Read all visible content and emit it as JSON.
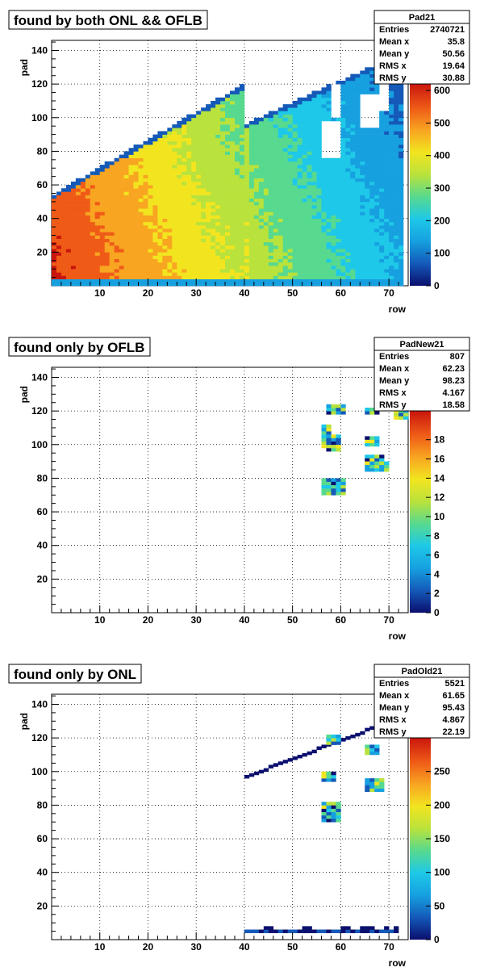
{
  "chart_data": [
    {
      "type": "heatmap",
      "title": "found by both ONL && OFLB",
      "xlabel": "row",
      "ylabel": "pad",
      "xlim": [
        0,
        74
      ],
      "ylim": [
        0,
        146
      ],
      "xticks": [
        "10",
        "20",
        "30",
        "40",
        "50",
        "60",
        "70"
      ],
      "yticks": [
        "20",
        "40",
        "60",
        "80",
        "100",
        "120",
        "140"
      ],
      "zlim": [
        0,
        620
      ],
      "zticks": [
        "0",
        "100",
        "200",
        "300",
        "400",
        "500",
        "600"
      ],
      "grid": true,
      "stats": {
        "name": "Pad21",
        "rows": [
          {
            "label": "Entries",
            "value": "2740721"
          },
          {
            "label": "Mean x",
            "value": "35.8"
          },
          {
            "label": "Mean y",
            "value": "50.56"
          },
          {
            "label": "RMS x",
            "value": "19.64"
          },
          {
            "label": "RMS y",
            "value": "30.88"
          }
        ]
      }
    },
    {
      "type": "heatmap",
      "title": "found only by OFLB",
      "xlabel": "row",
      "ylabel": "pad",
      "xlim": [
        0,
        74
      ],
      "ylim": [
        0,
        146
      ],
      "xticks": [
        "10",
        "20",
        "30",
        "40",
        "50",
        "60",
        "70"
      ],
      "yticks": [
        "20",
        "40",
        "60",
        "80",
        "100",
        "120",
        "140"
      ],
      "zlim": [
        0,
        21
      ],
      "zticks": [
        "0",
        "2",
        "4",
        "6",
        "8",
        "10",
        "12",
        "14",
        "16",
        "18"
      ],
      "grid": true,
      "stats": {
        "name": "PadNew21",
        "rows": [
          {
            "label": "Entries",
            "value": "807"
          },
          {
            "label": "Mean x",
            "value": "62.23"
          },
          {
            "label": "Mean y",
            "value": "98.23"
          },
          {
            "label": "RMS x",
            "value": "4.167"
          },
          {
            "label": "RMS y",
            "value": "18.58"
          }
        ]
      }
    },
    {
      "type": "heatmap",
      "title": "found only by ONL",
      "xlabel": "row",
      "ylabel": "pad",
      "xlim": [
        0,
        74
      ],
      "ylim": [
        0,
        146
      ],
      "xticks": [
        "10",
        "20",
        "30",
        "40",
        "50",
        "60",
        "70"
      ],
      "yticks": [
        "20",
        "40",
        "60",
        "80",
        "100",
        "120",
        "140"
      ],
      "zlim": [
        0,
        300
      ],
      "zticks": [
        "0",
        "50",
        "100",
        "150",
        "200",
        "250"
      ],
      "grid": true,
      "stats": {
        "name": "PadOld21",
        "rows": [
          {
            "label": "Entries",
            "value": "5521"
          },
          {
            "label": "Mean x",
            "value": "61.65"
          },
          {
            "label": "Mean y",
            "value": "95.43"
          },
          {
            "label": "RMS x",
            "value": "4.867"
          },
          {
            "label": "RMS y",
            "value": "22.19"
          }
        ]
      }
    }
  ],
  "palette": [
    "#0b0f6e",
    "#1459b8",
    "#16a0e0",
    "#1ec8e8",
    "#57d98f",
    "#b9e23c",
    "#f2e51f",
    "#f8a521",
    "#ef5b17",
    "#c9160d"
  ]
}
